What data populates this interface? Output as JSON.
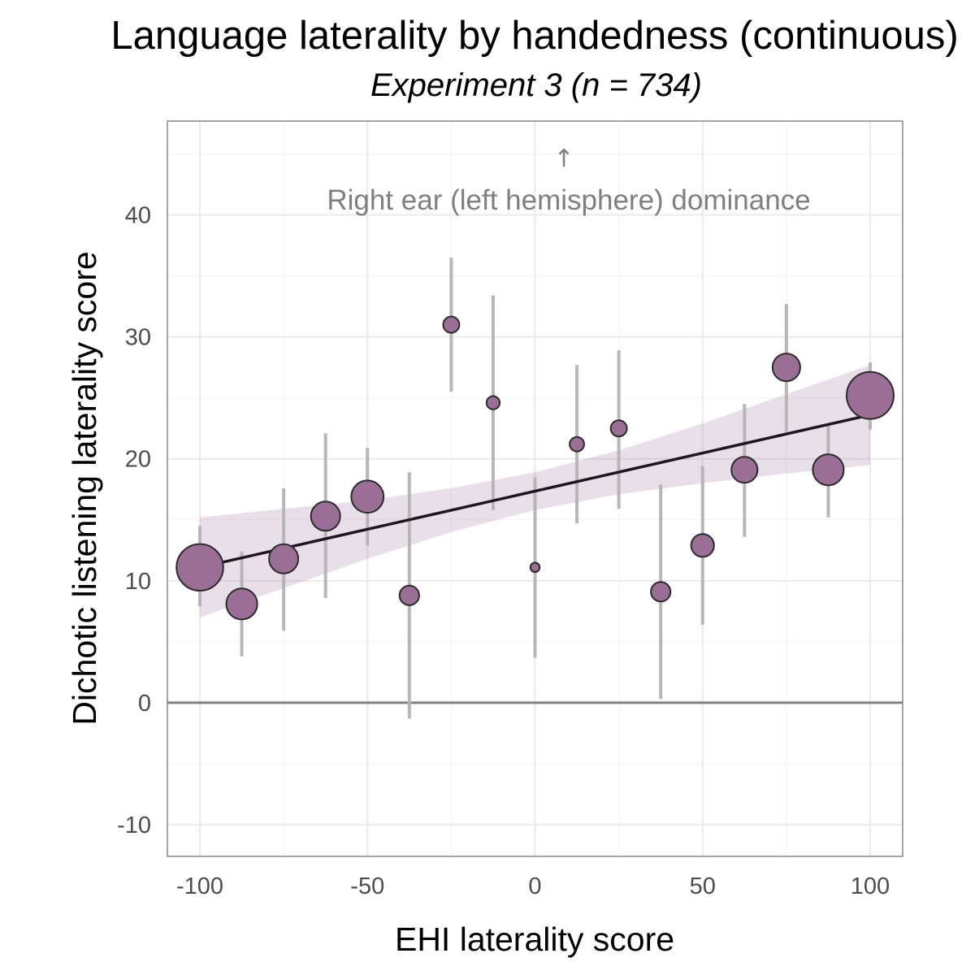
{
  "chart_data": {
    "type": "scatter",
    "title": "Language laterality by handedness (continuous)",
    "subtitle": "Experiment 3 (n = 734)",
    "xlabel": "EHI laterality score",
    "ylabel": "Dichotic listening laterality score",
    "xlim": [
      -109.7,
      109.7
    ],
    "ylim": [
      -12.6,
      47.7
    ],
    "x_ticks": [
      -100,
      -50,
      0,
      50,
      100
    ],
    "x_tick_labels": [
      "-100",
      "-50",
      "0",
      "50",
      "100"
    ],
    "y_ticks": [
      -10,
      0,
      10,
      20,
      30,
      40
    ],
    "y_tick_labels": [
      "-10",
      "0",
      "10",
      "20",
      "30",
      "40"
    ],
    "grid": true,
    "minor_grid": true,
    "legend": "none",
    "reference_line_y": 0,
    "points": [
      {
        "x": -100,
        "y": 11.1,
        "lower": 7.9,
        "upper": 14.5,
        "n": 125
      },
      {
        "x": -87.5,
        "y": 8.1,
        "lower": 3.8,
        "upper": 12.4,
        "n": 55
      },
      {
        "x": -75,
        "y": 11.8,
        "lower": 5.9,
        "upper": 17.6,
        "n": 49
      },
      {
        "x": -62.5,
        "y": 15.3,
        "lower": 8.6,
        "upper": 22.1,
        "n": 49
      },
      {
        "x": -50,
        "y": 16.9,
        "lower": 12.9,
        "upper": 20.9,
        "n": 60
      },
      {
        "x": -37.5,
        "y": 8.8,
        "lower": -1.3,
        "upper": 18.9,
        "n": 22
      },
      {
        "x": -25,
        "y": 31.0,
        "lower": 25.5,
        "upper": 36.5,
        "n": 15
      },
      {
        "x": -12.5,
        "y": 24.6,
        "lower": 15.8,
        "upper": 33.4,
        "n": 10
      },
      {
        "x": 0,
        "y": 11.1,
        "lower": 3.7,
        "upper": 18.5,
        "n": 5
      },
      {
        "x": 12.5,
        "y": 21.2,
        "lower": 14.7,
        "upper": 27.7,
        "n": 12
      },
      {
        "x": 25,
        "y": 22.5,
        "lower": 15.9,
        "upper": 28.9,
        "n": 15
      },
      {
        "x": 37.5,
        "y": 9.1,
        "lower": 0.3,
        "upper": 17.9,
        "n": 22
      },
      {
        "x": 50,
        "y": 12.9,
        "lower": 6.4,
        "upper": 19.4,
        "n": 30
      },
      {
        "x": 62.5,
        "y": 19.1,
        "lower": 13.6,
        "upper": 24.5,
        "n": 39
      },
      {
        "x": 75,
        "y": 27.5,
        "lower": 22.2,
        "upper": 32.7,
        "n": 44
      },
      {
        "x": 87.5,
        "y": 19.1,
        "lower": 15.2,
        "upper": 22.9,
        "n": 55
      },
      {
        "x": 100,
        "y": 25.2,
        "lower": 22.4,
        "upper": 27.9,
        "n": 127
      }
    ],
    "fit": {
      "x": [
        -100,
        100
      ],
      "y": [
        11.1,
        23.6
      ]
    },
    "ci_band": {
      "x": [
        -100,
        -75,
        -50,
        -25,
        0,
        25,
        50,
        75,
        100
      ],
      "lower": [
        7.0,
        9.4,
        11.8,
        14.0,
        15.8,
        17.1,
        18.0,
        18.8,
        19.5
      ],
      "upper": [
        15.2,
        15.9,
        16.6,
        17.6,
        18.9,
        20.7,
        22.9,
        25.3,
        27.7
      ]
    },
    "annotation": {
      "arrow": "↑",
      "text": "Right ear (left hemisphere) dominance"
    },
    "colors": {
      "point_fill": "#9b6e95",
      "point_stroke": "#2b2b2b",
      "error_bar": "#b3b3b3",
      "fit_line": "#1f1420",
      "band_fill": "#9b6e95",
      "reference_line": "#808080",
      "grid_major": "#ebebeb",
      "grid_minor": "#f4f4f4",
      "panel_border": "#7f7f7f",
      "annotation": "#7f7f7f"
    }
  }
}
